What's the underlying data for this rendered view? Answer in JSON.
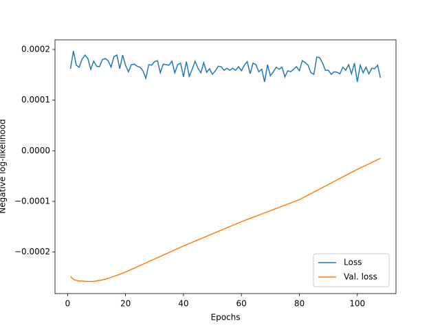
{
  "chart_data": {
    "type": "line",
    "xlabel": "Epochs",
    "ylabel": "Negative log-likelihood",
    "xlim": [
      -4.35,
      113.35
    ],
    "ylim": [
      -0.000282,
      0.000219
    ],
    "xticks": [
      0,
      20,
      40,
      60,
      80,
      100
    ],
    "yticks": [
      {
        "value": -0.0002,
        "label": "−0.0002"
      },
      {
        "value": -0.0001,
        "label": "−0.0001"
      },
      {
        "value": 0,
        "label": "0.0000"
      },
      {
        "value": 0.0001,
        "label": "0.0001"
      },
      {
        "value": 0.0002,
        "label": "0.0002"
      }
    ],
    "legend": "lower right",
    "x": [
      1,
      2,
      3,
      4,
      5,
      6,
      7,
      8,
      9,
      10,
      11,
      12,
      13,
      14,
      15,
      16,
      17,
      18,
      19,
      20,
      21,
      22,
      23,
      24,
      25,
      26,
      27,
      28,
      29,
      30,
      31,
      32,
      33,
      34,
      35,
      36,
      37,
      38,
      39,
      40,
      41,
      42,
      43,
      44,
      45,
      46,
      47,
      48,
      49,
      50,
      51,
      52,
      53,
      54,
      55,
      56,
      57,
      58,
      59,
      60,
      61,
      62,
      63,
      64,
      65,
      66,
      67,
      68,
      69,
      70,
      71,
      72,
      73,
      74,
      75,
      76,
      77,
      78,
      79,
      80,
      81,
      82,
      83,
      84,
      85,
      86,
      87,
      88,
      89,
      90,
      91,
      92,
      93,
      94,
      95,
      96,
      97,
      98,
      99,
      100,
      101,
      102,
      103,
      104,
      105,
      106,
      107,
      108
    ],
    "series": [
      {
        "name": "Loss",
        "color": "#1f77b4",
        "values": [
          0.000162,
          0.000197,
          0.000169,
          0.000165,
          0.000181,
          0.000189,
          0.000182,
          0.000161,
          0.000177,
          0.000167,
          0.000166,
          0.00018,
          0.000182,
          0.000178,
          0.000165,
          0.000186,
          0.000189,
          0.000162,
          0.000189,
          0.000169,
          0.000156,
          0.00017,
          0.000171,
          0.000167,
          0.000165,
          0.000158,
          0.000143,
          0.00017,
          0.000169,
          0.000176,
          0.000178,
          0.000154,
          0.000171,
          0.00017,
          0.000169,
          0.000177,
          0.000154,
          0.00017,
          0.000173,
          0.000146,
          0.000176,
          0.000147,
          0.000161,
          0.000177,
          0.000163,
          0.000154,
          0.000174,
          0.000155,
          0.000162,
          0.000151,
          0.000158,
          0.000167,
          0.000166,
          0.000159,
          0.000163,
          0.000159,
          0.000163,
          0.000159,
          0.000166,
          0.000158,
          0.000169,
          0.000176,
          0.000152,
          0.000173,
          0.00017,
          0.000156,
          0.000161,
          0.000136,
          0.00017,
          0.000148,
          0.000156,
          0.000165,
          0.000161,
          0.000165,
          0.000146,
          0.000158,
          0.000156,
          0.000161,
          0.000166,
          0.000158,
          0.000178,
          0.000174,
          0.000169,
          0.000154,
          0.000151,
          0.000185,
          0.000184,
          0.000173,
          0.000159,
          0.000159,
          0.000151,
          0.000156,
          0.000155,
          0.000152,
          0.000165,
          0.000159,
          0.00017,
          0.000152,
          0.000173,
          0.000136,
          0.000169,
          0.000154,
          0.000165,
          0.000152,
          0.000163,
          0.000162,
          0.000169,
          0.000144
        ]
      },
      {
        "name": "Val. loss",
        "color": "#ff7f0e",
        "values": [
          -0.000248,
          -0.000254,
          -0.000256,
          -0.000257,
          -0.000257,
          -0.000258,
          -0.000258,
          -0.000258,
          -0.000258,
          -0.000257,
          -0.000256,
          -0.000255,
          -0.0002535,
          -0.000252,
          -0.00025,
          -0.000248,
          -0.000246,
          -0.000244,
          -0.0002415,
          -0.0002395,
          -0.0002369,
          -0.0002343,
          -0.0002318,
          -0.0002292,
          -0.0002266,
          -0.000224,
          -0.0002215,
          -0.0002189,
          -0.0002163,
          -0.0002138,
          -0.0002112,
          -0.0002086,
          -0.000206,
          -0.0002035,
          -0.0002009,
          -0.0001983,
          -0.0001957,
          -0.0001932,
          -0.0001906,
          -0.000188,
          -0.0001856,
          -0.0001832,
          -0.0001808,
          -0.0001784,
          -0.000176,
          -0.0001736,
          -0.0001712,
          -0.0001688,
          -0.0001664,
          -0.000164,
          -0.0001616,
          -0.0001592,
          -0.0001568,
          -0.0001544,
          -0.000152,
          -0.0001496,
          -0.0001472,
          -0.0001448,
          -0.0001424,
          -0.00014,
          -0.0001378,
          -0.0001357,
          -0.0001335,
          -0.0001313,
          -0.0001292,
          -0.000127,
          -0.0001248,
          -0.0001226,
          -0.0001205,
          -0.0001183,
          -0.0001161,
          -0.000114,
          -0.0001118,
          -0.0001096,
          -0.0001075,
          -0.0001053,
          -0.0001031,
          -0.0001009,
          -9.88e-05,
          -9.66e-05,
          -9.36e-05,
          -9.06e-05,
          -8.76e-05,
          -8.46e-05,
          -8.16e-05,
          -7.86e-05,
          -7.56e-05,
          -7.26e-05,
          -6.96e-05,
          -6.66e-05,
          -6.36e-05,
          -6.06e-05,
          -5.76e-05,
          -5.46e-05,
          -5.16e-05,
          -4.86e-05,
          -4.56e-05,
          -4.26e-05,
          -3.97e-05,
          -3.67e-05,
          -3.4e-05,
          -3.13e-05,
          -2.86e-05,
          -2.59e-05,
          -2.31e-05,
          -2.04e-05,
          -1.77e-05,
          -1.5e-05
        ]
      }
    ]
  }
}
